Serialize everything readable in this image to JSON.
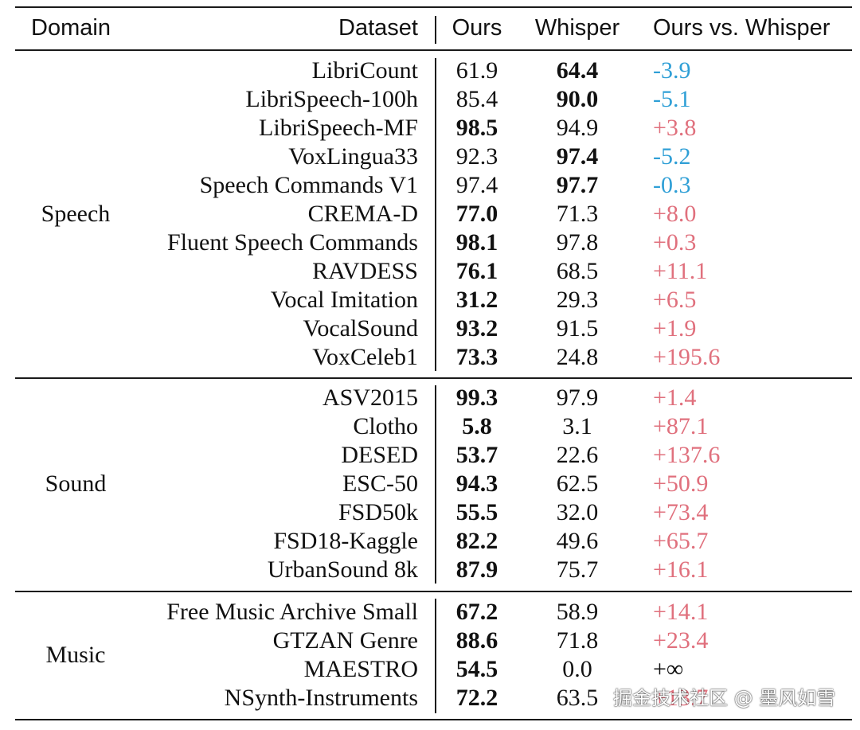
{
  "header": {
    "domain": "Domain",
    "dataset": "Dataset",
    "ours": "Ours",
    "whisper": "Whisper",
    "delta": "Ours vs. Whisper"
  },
  "groups": [
    {
      "domain": "Speech",
      "rows": [
        {
          "dataset": "LibriCount",
          "ours": "61.9",
          "whisper": "64.4",
          "delta": "-3.9",
          "best": "whisper",
          "sign": "neg"
        },
        {
          "dataset": "LibriSpeech-100h",
          "ours": "85.4",
          "whisper": "90.0",
          "delta": "-5.1",
          "best": "whisper",
          "sign": "neg"
        },
        {
          "dataset": "LibriSpeech-MF",
          "ours": "98.5",
          "whisper": "94.9",
          "delta": "+3.8",
          "best": "ours",
          "sign": "pos"
        },
        {
          "dataset": "VoxLingua33",
          "ours": "92.3",
          "whisper": "97.4",
          "delta": "-5.2",
          "best": "whisper",
          "sign": "neg"
        },
        {
          "dataset": "Speech Commands V1",
          "ours": "97.4",
          "whisper": "97.7",
          "delta": "-0.3",
          "best": "whisper",
          "sign": "neg"
        },
        {
          "dataset": "CREMA-D",
          "ours": "77.0",
          "whisper": "71.3",
          "delta": "+8.0",
          "best": "ours",
          "sign": "pos"
        },
        {
          "dataset": "Fluent Speech Commands",
          "ours": "98.1",
          "whisper": "97.8",
          "delta": "+0.3",
          "best": "ours",
          "sign": "pos"
        },
        {
          "dataset": "RAVDESS",
          "ours": "76.1",
          "whisper": "68.5",
          "delta": "+11.1",
          "best": "ours",
          "sign": "pos"
        },
        {
          "dataset": "Vocal Imitation",
          "ours": "31.2",
          "whisper": "29.3",
          "delta": "+6.5",
          "best": "ours",
          "sign": "pos"
        },
        {
          "dataset": "VocalSound",
          "ours": "93.2",
          "whisper": "91.5",
          "delta": "+1.9",
          "best": "ours",
          "sign": "pos"
        },
        {
          "dataset": "VoxCeleb1",
          "ours": "73.3",
          "whisper": "24.8",
          "delta": "+195.6",
          "best": "ours",
          "sign": "pos"
        }
      ]
    },
    {
      "domain": "Sound",
      "rows": [
        {
          "dataset": "ASV2015",
          "ours": "99.3",
          "whisper": "97.9",
          "delta": "+1.4",
          "best": "ours",
          "sign": "pos"
        },
        {
          "dataset": "Clotho",
          "ours": "5.8",
          "whisper": "3.1",
          "delta": "+87.1",
          "best": "ours",
          "sign": "pos"
        },
        {
          "dataset": "DESED",
          "ours": "53.7",
          "whisper": "22.6",
          "delta": "+137.6",
          "best": "ours",
          "sign": "pos"
        },
        {
          "dataset": "ESC-50",
          "ours": "94.3",
          "whisper": "62.5",
          "delta": "+50.9",
          "best": "ours",
          "sign": "pos"
        },
        {
          "dataset": "FSD50k",
          "ours": "55.5",
          "whisper": "32.0",
          "delta": "+73.4",
          "best": "ours",
          "sign": "pos"
        },
        {
          "dataset": "FSD18-Kaggle",
          "ours": "82.2",
          "whisper": "49.6",
          "delta": "+65.7",
          "best": "ours",
          "sign": "pos"
        },
        {
          "dataset": "UrbanSound 8k",
          "ours": "87.9",
          "whisper": "75.7",
          "delta": "+16.1",
          "best": "ours",
          "sign": "pos"
        }
      ]
    },
    {
      "domain": "Music",
      "rows": [
        {
          "dataset": "Free Music Archive Small",
          "ours": "67.2",
          "whisper": "58.9",
          "delta": "+14.1",
          "best": "ours",
          "sign": "pos"
        },
        {
          "dataset": "GTZAN Genre",
          "ours": "88.6",
          "whisper": "71.8",
          "delta": "+23.4",
          "best": "ours",
          "sign": "pos"
        },
        {
          "dataset": "MAESTRO",
          "ours": "54.5",
          "whisper": "0.0",
          "delta": "+∞",
          "best": "ours",
          "sign": "inf"
        },
        {
          "dataset": "NSynth-Instruments",
          "ours": "72.2",
          "whisper": "63.5",
          "delta": "+13.7",
          "best": "ours",
          "sign": "pos"
        }
      ]
    }
  ],
  "watermark": "掘金技术社区 @ 墨风如雪",
  "colors": {
    "negative": "#2f9fd6",
    "positive": "#e0707d",
    "rule": "#1a1a1a",
    "text": "#111111"
  }
}
